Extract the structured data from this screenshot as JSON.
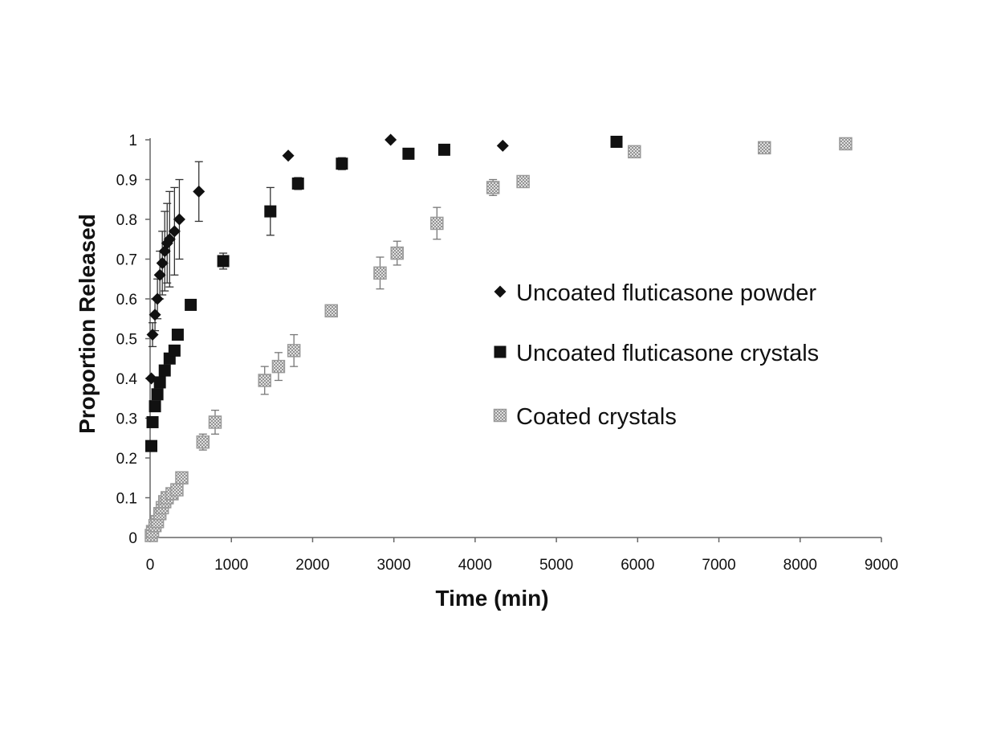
{
  "chart_data": {
    "type": "scatter",
    "xlabel": "Time (min)",
    "ylabel": "Proportion Released",
    "xlim": [
      0,
      9000
    ],
    "ylim": [
      0,
      1
    ],
    "xticks": [
      0,
      1000,
      2000,
      3000,
      4000,
      5000,
      6000,
      7000,
      8000,
      9000
    ],
    "yticks": [
      0,
      0.1,
      0.2,
      0.3,
      0.4,
      0.5,
      0.6,
      0.7,
      0.8,
      0.9,
      1
    ],
    "grid": false,
    "legend_position": "right",
    "series": [
      {
        "name": "Uncoated fluticasone powder",
        "marker": "diamond",
        "color": "#111111",
        "points": [
          {
            "x": 15,
            "y": 0.4,
            "err": 0
          },
          {
            "x": 30,
            "y": 0.51,
            "err": 0.03
          },
          {
            "x": 60,
            "y": 0.56,
            "err": 0.04
          },
          {
            "x": 90,
            "y": 0.6,
            "err": 0.05
          },
          {
            "x": 120,
            "y": 0.66,
            "err": 0.06
          },
          {
            "x": 150,
            "y": 0.69,
            "err": 0.08
          },
          {
            "x": 180,
            "y": 0.72,
            "err": 0.1
          },
          {
            "x": 210,
            "y": 0.74,
            "err": 0.1
          },
          {
            "x": 240,
            "y": 0.75,
            "err": 0.12
          },
          {
            "x": 300,
            "y": 0.77,
            "err": 0.11
          },
          {
            "x": 360,
            "y": 0.8,
            "err": 0.1
          },
          {
            "x": 600,
            "y": 0.87,
            "err": 0.075
          },
          {
            "x": 1700,
            "y": 0.96,
            "err": 0
          },
          {
            "x": 2960,
            "y": 1.0,
            "err": 0
          },
          {
            "x": 4340,
            "y": 0.985,
            "err": 0
          }
        ]
      },
      {
        "name": "Uncoated fluticasone crystals",
        "marker": "square",
        "color": "#111111",
        "points": [
          {
            "x": 15,
            "y": 0.23,
            "err": 0
          },
          {
            "x": 30,
            "y": 0.29,
            "err": 0.01
          },
          {
            "x": 60,
            "y": 0.33,
            "err": 0.01
          },
          {
            "x": 90,
            "y": 0.36,
            "err": 0.01
          },
          {
            "x": 120,
            "y": 0.39,
            "err": 0.01
          },
          {
            "x": 180,
            "y": 0.42,
            "err": 0.01
          },
          {
            "x": 240,
            "y": 0.45,
            "err": 0.01
          },
          {
            "x": 300,
            "y": 0.47,
            "err": 0.01
          },
          {
            "x": 340,
            "y": 0.51,
            "err": 0.01
          },
          {
            "x": 500,
            "y": 0.585,
            "err": 0.01
          },
          {
            "x": 900,
            "y": 0.695,
            "err": 0.02
          },
          {
            "x": 1480,
            "y": 0.82,
            "err": 0.06
          },
          {
            "x": 1820,
            "y": 0.89,
            "err": 0.015
          },
          {
            "x": 2360,
            "y": 0.94,
            "err": 0.015
          },
          {
            "x": 3180,
            "y": 0.965,
            "err": 0
          },
          {
            "x": 3620,
            "y": 0.975,
            "err": 0
          },
          {
            "x": 5740,
            "y": 0.995,
            "err": 0
          }
        ]
      },
      {
        "name": "Coated crystals",
        "marker": "hatched-square",
        "color": "#9a9a9a",
        "points": [
          {
            "x": 15,
            "y": 0.005,
            "err": 0
          },
          {
            "x": 30,
            "y": 0.015,
            "err": 0
          },
          {
            "x": 60,
            "y": 0.03,
            "err": 0
          },
          {
            "x": 90,
            "y": 0.04,
            "err": 0
          },
          {
            "x": 120,
            "y": 0.06,
            "err": 0
          },
          {
            "x": 150,
            "y": 0.075,
            "err": 0
          },
          {
            "x": 180,
            "y": 0.09,
            "err": 0.005
          },
          {
            "x": 210,
            "y": 0.1,
            "err": 0.005
          },
          {
            "x": 270,
            "y": 0.11,
            "err": 0.005
          },
          {
            "x": 330,
            "y": 0.12,
            "err": 0.005
          },
          {
            "x": 390,
            "y": 0.15,
            "err": 0.01
          },
          {
            "x": 650,
            "y": 0.24,
            "err": 0.02
          },
          {
            "x": 800,
            "y": 0.29,
            "err": 0.03
          },
          {
            "x": 1410,
            "y": 0.395,
            "err": 0.035
          },
          {
            "x": 1580,
            "y": 0.43,
            "err": 0.035
          },
          {
            "x": 1770,
            "y": 0.47,
            "err": 0.04
          },
          {
            "x": 2230,
            "y": 0.57,
            "err": 0.01
          },
          {
            "x": 2830,
            "y": 0.665,
            "err": 0.04
          },
          {
            "x": 3040,
            "y": 0.715,
            "err": 0.03
          },
          {
            "x": 3530,
            "y": 0.79,
            "err": 0.04
          },
          {
            "x": 4220,
            "y": 0.88,
            "err": 0.02
          },
          {
            "x": 4590,
            "y": 0.895,
            "err": 0.01
          },
          {
            "x": 5960,
            "y": 0.97,
            "err": 0
          },
          {
            "x": 7560,
            "y": 0.98,
            "err": 0
          },
          {
            "x": 8560,
            "y": 0.99,
            "err": 0
          }
        ]
      }
    ]
  }
}
